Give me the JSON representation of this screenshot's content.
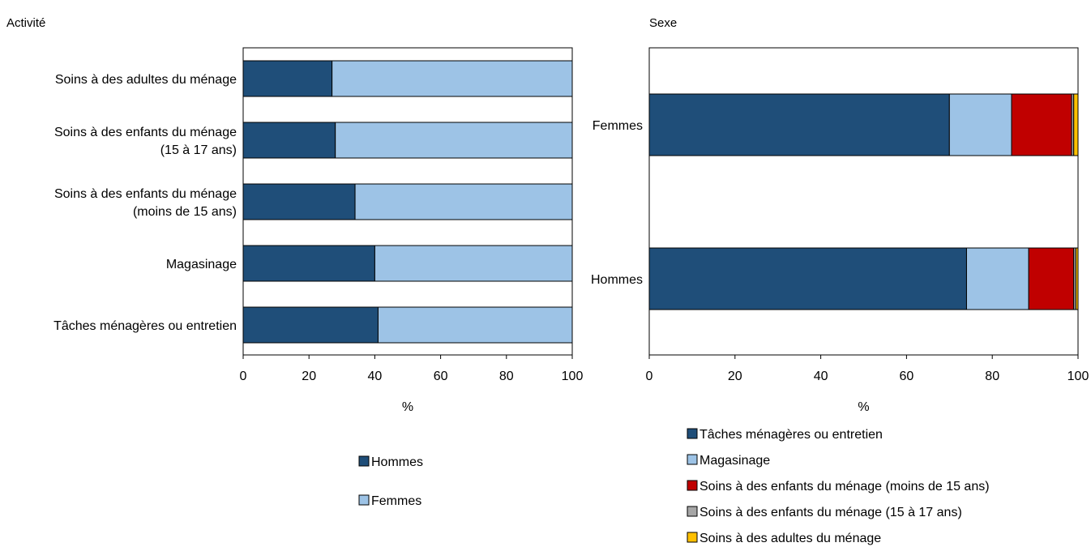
{
  "charts": [
    {
      "type": "bar",
      "orientation": "horizontal",
      "stacked": true,
      "panel_title": "Activité",
      "categories": [
        [
          "Soins à des adultes du ménage"
        ],
        [
          "Soins à des enfants du ménage",
          "(15 à 17 ans)"
        ],
        [
          "Soins à des enfants du ménage",
          "(moins de 15 ans)"
        ],
        [
          "Magasinage"
        ],
        [
          "Tâches ménagères ou entretien"
        ]
      ],
      "series": [
        {
          "name": "Hommes",
          "color": "#1f4e79",
          "values": [
            27,
            28,
            34,
            40,
            41
          ]
        },
        {
          "name": "Femmes",
          "color": "#9dc3e6",
          "values": [
            73,
            72,
            66,
            60,
            59
          ]
        }
      ],
      "xlim": [
        0,
        100
      ],
      "xticks": [
        0,
        20,
        40,
        60,
        80,
        100
      ],
      "xlabel": "%",
      "legend_position": "bottom"
    },
    {
      "type": "bar",
      "orientation": "horizontal",
      "stacked": true,
      "panel_title": "Sexe",
      "categories": [
        [
          "Femmes"
        ],
        [
          "Hommes"
        ]
      ],
      "series": [
        {
          "name": "Tâches ménagères ou entretien",
          "color": "#1f4e79",
          "values": [
            70,
            74
          ]
        },
        {
          "name": "Magasinage",
          "color": "#9dc3e6",
          "values": [
            14.5,
            14.5
          ]
        },
        {
          "name": "Soins à des enfants du ménage (moins de 15 ans)",
          "color": "#c00000",
          "values": [
            14,
            10.5
          ]
        },
        {
          "name": "Soins à des enfants du ménage (15 à 17 ans)",
          "color": "#a6a6a6",
          "values": [
            0.5,
            0.5
          ]
        },
        {
          "name": "Soins à des adultes du ménage",
          "color": "#ffc000",
          "values": [
            1,
            0.5
          ]
        }
      ],
      "xlim": [
        0,
        100
      ],
      "xticks": [
        0,
        20,
        40,
        60,
        80,
        100
      ],
      "xlabel": "%",
      "legend_position": "bottom"
    }
  ]
}
